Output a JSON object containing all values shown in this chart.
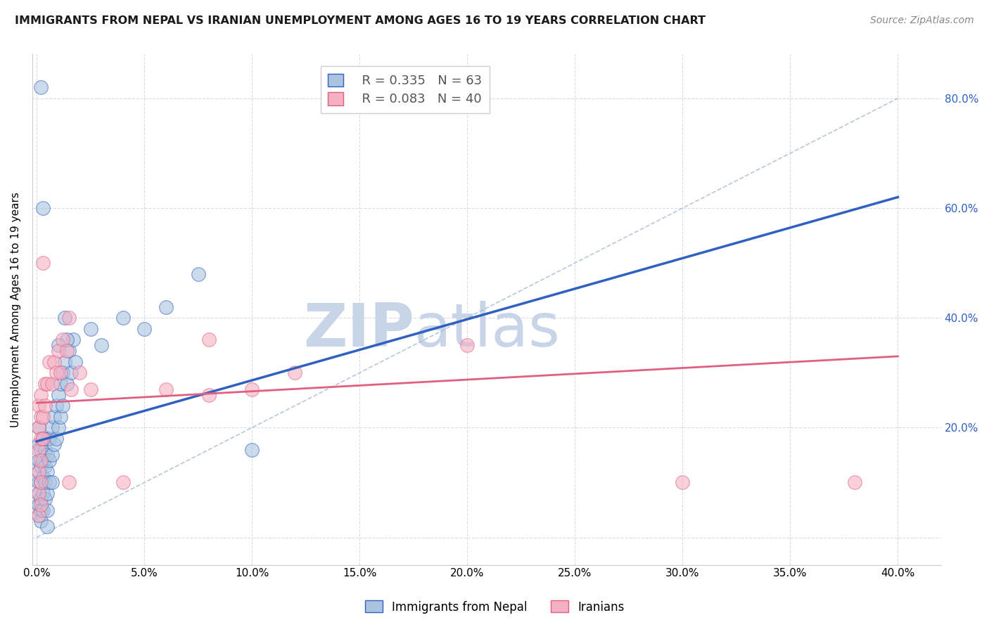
{
  "title": "IMMIGRANTS FROM NEPAL VS IRANIAN UNEMPLOYMENT AMONG AGES 16 TO 19 YEARS CORRELATION CHART",
  "source": "Source: ZipAtlas.com",
  "ylabel": "Unemployment Among Ages 16 to 19 years",
  "xlim": [
    -0.002,
    0.42
  ],
  "ylim": [
    -0.05,
    0.88
  ],
  "xticks": [
    0.0,
    0.05,
    0.1,
    0.15,
    0.2,
    0.25,
    0.3,
    0.35,
    0.4
  ],
  "right_yticks": [
    0.0,
    0.2,
    0.4,
    0.6,
    0.8
  ],
  "right_ytick_labels": [
    "",
    "20.0%",
    "40.0%",
    "60.0%",
    "80.0%"
  ],
  "blue_R": 0.335,
  "blue_N": 63,
  "pink_R": 0.083,
  "pink_N": 40,
  "blue_color": "#aac4e0",
  "pink_color": "#f4b0c4",
  "blue_line_color": "#3060c0",
  "pink_line_color": "#e06080",
  "ref_line_color": "#aab8d0",
  "legend_label_blue": "Immigrants from Nepal",
  "legend_label_pink": "Iranians",
  "blue_scatter": [
    [
      0.001,
      0.17
    ],
    [
      0.001,
      0.14
    ],
    [
      0.001,
      0.2
    ],
    [
      0.001,
      0.12
    ],
    [
      0.001,
      0.1
    ],
    [
      0.001,
      0.08
    ],
    [
      0.001,
      0.06
    ],
    [
      0.001,
      0.04
    ],
    [
      0.002,
      0.16
    ],
    [
      0.002,
      0.13
    ],
    [
      0.002,
      0.1
    ],
    [
      0.002,
      0.07
    ],
    [
      0.002,
      0.05
    ],
    [
      0.002,
      0.03
    ],
    [
      0.003,
      0.18
    ],
    [
      0.003,
      0.14
    ],
    [
      0.003,
      0.11
    ],
    [
      0.003,
      0.08
    ],
    [
      0.003,
      0.05
    ],
    [
      0.003,
      0.6
    ],
    [
      0.004,
      0.16
    ],
    [
      0.004,
      0.13
    ],
    [
      0.004,
      0.1
    ],
    [
      0.004,
      0.07
    ],
    [
      0.005,
      0.18
    ],
    [
      0.005,
      0.15
    ],
    [
      0.005,
      0.12
    ],
    [
      0.005,
      0.08
    ],
    [
      0.005,
      0.05
    ],
    [
      0.005,
      0.02
    ],
    [
      0.006,
      0.18
    ],
    [
      0.006,
      0.14
    ],
    [
      0.006,
      0.1
    ],
    [
      0.007,
      0.2
    ],
    [
      0.007,
      0.15
    ],
    [
      0.007,
      0.1
    ],
    [
      0.008,
      0.22
    ],
    [
      0.008,
      0.17
    ],
    [
      0.009,
      0.24
    ],
    [
      0.009,
      0.18
    ],
    [
      0.01,
      0.26
    ],
    [
      0.01,
      0.2
    ],
    [
      0.011,
      0.28
    ],
    [
      0.011,
      0.22
    ],
    [
      0.012,
      0.3
    ],
    [
      0.012,
      0.24
    ],
    [
      0.013,
      0.32
    ],
    [
      0.014,
      0.28
    ],
    [
      0.015,
      0.34
    ],
    [
      0.016,
      0.3
    ],
    [
      0.017,
      0.36
    ],
    [
      0.018,
      0.32
    ],
    [
      0.025,
      0.38
    ],
    [
      0.03,
      0.35
    ],
    [
      0.04,
      0.4
    ],
    [
      0.05,
      0.38
    ],
    [
      0.06,
      0.42
    ],
    [
      0.075,
      0.48
    ],
    [
      0.1,
      0.16
    ],
    [
      0.013,
      0.4
    ],
    [
      0.014,
      0.36
    ],
    [
      0.01,
      0.35
    ],
    [
      0.002,
      0.82
    ]
  ],
  "pink_scatter": [
    [
      0.001,
      0.24
    ],
    [
      0.001,
      0.2
    ],
    [
      0.001,
      0.16
    ],
    [
      0.001,
      0.12
    ],
    [
      0.001,
      0.08
    ],
    [
      0.001,
      0.04
    ],
    [
      0.002,
      0.26
    ],
    [
      0.002,
      0.22
    ],
    [
      0.002,
      0.18
    ],
    [
      0.002,
      0.14
    ],
    [
      0.002,
      0.1
    ],
    [
      0.002,
      0.06
    ],
    [
      0.003,
      0.5
    ],
    [
      0.003,
      0.22
    ],
    [
      0.003,
      0.18
    ],
    [
      0.004,
      0.28
    ],
    [
      0.004,
      0.24
    ],
    [
      0.005,
      0.28
    ],
    [
      0.006,
      0.32
    ],
    [
      0.007,
      0.28
    ],
    [
      0.008,
      0.32
    ],
    [
      0.009,
      0.3
    ],
    [
      0.01,
      0.34
    ],
    [
      0.011,
      0.3
    ],
    [
      0.012,
      0.36
    ],
    [
      0.014,
      0.34
    ],
    [
      0.015,
      0.1
    ],
    [
      0.016,
      0.27
    ],
    [
      0.02,
      0.3
    ],
    [
      0.025,
      0.27
    ],
    [
      0.04,
      0.1
    ],
    [
      0.06,
      0.27
    ],
    [
      0.08,
      0.26
    ],
    [
      0.1,
      0.27
    ],
    [
      0.12,
      0.3
    ],
    [
      0.2,
      0.35
    ],
    [
      0.3,
      0.1
    ],
    [
      0.38,
      0.1
    ],
    [
      0.015,
      0.4
    ],
    [
      0.08,
      0.36
    ]
  ],
  "blue_trend_x": [
    0.0,
    0.4
  ],
  "blue_trend_y": [
    0.175,
    0.62
  ],
  "pink_trend_x": [
    0.0,
    0.4
  ],
  "pink_trend_y": [
    0.245,
    0.33
  ],
  "ref_line_x": [
    0.0,
    0.4
  ],
  "ref_line_y": [
    0.0,
    0.8
  ],
  "background_color": "#ffffff",
  "watermark_zip": "ZIP",
  "watermark_atlas": "atlas",
  "watermark_color": "#c8d4e8",
  "grid_color": "#d8dce8",
  "grid_style": "--"
}
